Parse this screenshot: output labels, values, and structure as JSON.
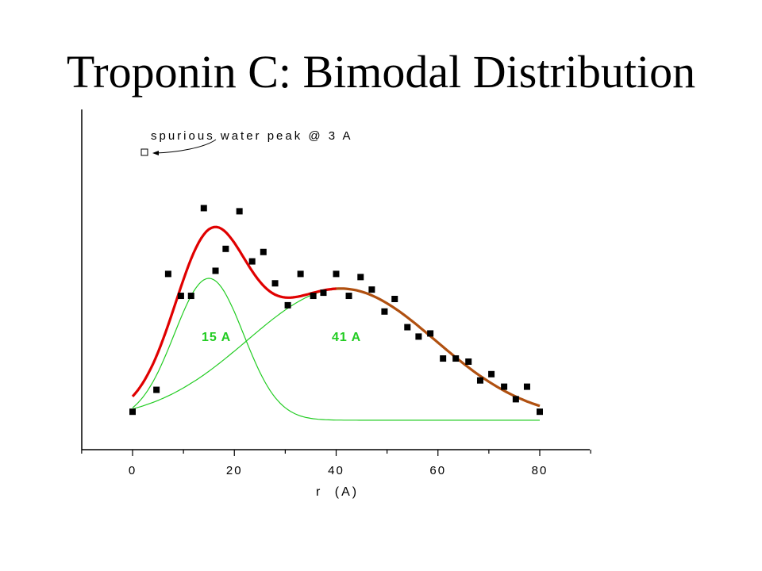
{
  "title": "Troponin C: Bimodal Distribution",
  "chart_data": {
    "type": "scatter",
    "xlabel": "r",
    "xunit": "(A)",
    "xlim": [
      -10,
      90
    ],
    "ylim": [
      0,
      1
    ],
    "x_ticks": [
      0,
      20,
      40,
      60,
      80
    ],
    "y_ticks_labeled": false,
    "grid": false,
    "colors": {
      "data": "#000000",
      "fit_total": "#e00000",
      "fit_tail": "#b05010",
      "components": "#22cc22"
    },
    "series": [
      {
        "points": [
          [
            0,
            0.04
          ],
          [
            4.7,
            0.11
          ],
          [
            7,
            0.48
          ],
          [
            9.5,
            0.41
          ],
          [
            11.5,
            0.41
          ],
          [
            14,
            0.69
          ],
          [
            16.3,
            0.49
          ],
          [
            18.3,
            0.56
          ],
          [
            21,
            0.68
          ],
          [
            23.5,
            0.52
          ],
          [
            25.7,
            0.55
          ],
          [
            28,
            0.45
          ],
          [
            30.5,
            0.38
          ],
          [
            33,
            0.48
          ],
          [
            35.5,
            0.41
          ],
          [
            37.5,
            0.42
          ],
          [
            40,
            0.48
          ],
          [
            42.5,
            0.41
          ],
          [
            44.8,
            0.47
          ],
          [
            47,
            0.43
          ],
          [
            49.5,
            0.36
          ],
          [
            51.5,
            0.4
          ],
          [
            54,
            0.31
          ],
          [
            56.2,
            0.28
          ],
          [
            58.5,
            0.29
          ],
          [
            61,
            0.21
          ],
          [
            63.5,
            0.21
          ],
          [
            66,
            0.2
          ],
          [
            68.3,
            0.14
          ],
          [
            70.5,
            0.16
          ],
          [
            73,
            0.12
          ],
          [
            75.3,
            0.08
          ],
          [
            77.5,
            0.12
          ],
          [
            80,
            0.04
          ]
        ]
      },
      {
        "peak_x": 15,
        "peak_y": 0.453,
        "label": "15 A"
      },
      {
        "peak_x": 41,
        "peak_y": 0.42,
        "label": "41 A"
      },
      {
        "sampled": [
          [
            0,
            0.11
          ],
          [
            6,
            0.33
          ],
          [
            10,
            0.5
          ],
          [
            14,
            0.57
          ],
          [
            18,
            0.59
          ],
          [
            22,
            0.54
          ],
          [
            27,
            0.45
          ],
          [
            32,
            0.42
          ],
          [
            38,
            0.42
          ],
          [
            42,
            0.42
          ],
          [
            50,
            0.36
          ],
          [
            60,
            0.24
          ],
          [
            70,
            0.13
          ],
          [
            80,
            0.06
          ]
        ]
      }
    ],
    "annotations": [
      {
        "text": "spurious water peak @ 3 A",
        "point": [
          2.5,
          0.85
        ],
        "marker": "open-square"
      }
    ]
  }
}
